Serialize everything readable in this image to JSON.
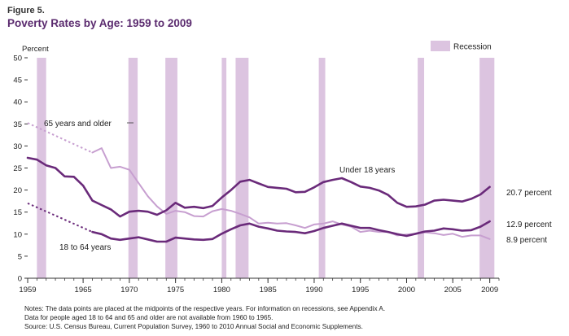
{
  "figure_label": "Figure 5.",
  "title": "Poverty Rates by Age: 1959 to 2009",
  "notes": [
    "Notes: The data points are placed at the midpoints of the respective years. For information on recessions, see Appendix A.",
    "Data for people aged 18 to 64 and 65 and older are not available from 1960 to 1965.",
    "Source: U.S. Census Bureau, Current Population Survey, 1960 to 2010 Annual Social and Economic Supplements."
  ],
  "colors": {
    "series": "#6a2a7a",
    "series_light": "#c79fd0",
    "recession": "#dcc4e0",
    "axis": "#333333"
  },
  "chart_data": {
    "type": "line",
    "ylabel": "Percent",
    "ylim": [
      0,
      50
    ],
    "xlim": [
      1959,
      2010
    ],
    "yticks": [
      0,
      5,
      10,
      15,
      20,
      25,
      30,
      35,
      40,
      45,
      50
    ],
    "xtick_labels": [
      1959,
      1965,
      1970,
      1975,
      1980,
      1985,
      1990,
      1995,
      2000,
      2005,
      2009
    ],
    "legend": {
      "label": "Recession",
      "placement": "top-right"
    },
    "recessions": [
      [
        1960.0,
        1961.0
      ],
      [
        1969.9,
        1970.9
      ],
      [
        1973.9,
        1975.2
      ],
      [
        1980.0,
        1980.5
      ],
      [
        1981.5,
        1982.9
      ],
      [
        1990.5,
        1991.2
      ],
      [
        2001.2,
        2001.9
      ],
      [
        2007.9,
        2009.5
      ]
    ],
    "series": [
      {
        "name": "Under 18 years",
        "end_label": "20.7 percent",
        "x": [
          1959,
          1960,
          1961,
          1962,
          1963,
          1964,
          1965,
          1966,
          1967,
          1968,
          1969,
          1970,
          1971,
          1972,
          1973,
          1974,
          1975,
          1976,
          1977,
          1978,
          1979,
          1980,
          1981,
          1982,
          1983,
          1984,
          1985,
          1986,
          1987,
          1988,
          1989,
          1990,
          1991,
          1992,
          1993,
          1994,
          1995,
          1996,
          1997,
          1998,
          1999,
          2000,
          2001,
          2002,
          2003,
          2004,
          2005,
          2006,
          2007,
          2008,
          2009
        ],
        "y": [
          27.3,
          26.9,
          25.6,
          25.0,
          23.1,
          23.0,
          21.0,
          17.6,
          16.6,
          15.6,
          14.0,
          15.1,
          15.3,
          15.1,
          14.4,
          15.4,
          17.1,
          16.0,
          16.2,
          15.9,
          16.4,
          18.3,
          20.0,
          21.9,
          22.3,
          21.5,
          20.7,
          20.5,
          20.3,
          19.5,
          19.6,
          20.6,
          21.8,
          22.3,
          22.7,
          21.8,
          20.8,
          20.5,
          19.9,
          18.9,
          17.1,
          16.2,
          16.3,
          16.7,
          17.6,
          17.8,
          17.6,
          17.4,
          18.0,
          19.0,
          20.7
        ]
      },
      {
        "name": "18 to 64 years",
        "end_label": "12.9 percent",
        "x": [
          1959,
          1966,
          1967,
          1968,
          1969,
          1970,
          1971,
          1972,
          1973,
          1974,
          1975,
          1976,
          1977,
          1978,
          1979,
          1980,
          1981,
          1982,
          1983,
          1984,
          1985,
          1986,
          1987,
          1988,
          1989,
          1990,
          1991,
          1992,
          1993,
          1994,
          1995,
          1996,
          1997,
          1998,
          1999,
          2000,
          2001,
          2002,
          2003,
          2004,
          2005,
          2006,
          2007,
          2008,
          2009
        ],
        "y": [
          17.0,
          10.5,
          10.0,
          9.0,
          8.7,
          9.0,
          9.3,
          8.8,
          8.3,
          8.3,
          9.2,
          9.0,
          8.8,
          8.7,
          8.9,
          10.1,
          11.1,
          12.0,
          12.4,
          11.7,
          11.3,
          10.8,
          10.6,
          10.5,
          10.2,
          10.7,
          11.4,
          11.9,
          12.4,
          11.9,
          11.4,
          11.4,
          10.9,
          10.5,
          10.0,
          9.6,
          10.1,
          10.6,
          10.8,
          11.3,
          11.1,
          10.8,
          10.9,
          11.7,
          12.9
        ],
        "dashed_until": 1966
      },
      {
        "name": "65 years and older",
        "end_label": "8.9 percent",
        "x": [
          1959,
          1966,
          1967,
          1968,
          1969,
          1970,
          1971,
          1972,
          1973,
          1974,
          1975,
          1976,
          1977,
          1978,
          1979,
          1980,
          1981,
          1982,
          1983,
          1984,
          1985,
          1986,
          1987,
          1988,
          1989,
          1990,
          1991,
          1992,
          1993,
          1994,
          1995,
          1996,
          1997,
          1998,
          1999,
          2000,
          2001,
          2002,
          2003,
          2004,
          2005,
          2006,
          2007,
          2008,
          2009
        ],
        "y": [
          35.2,
          28.5,
          29.5,
          25.0,
          25.3,
          24.6,
          21.6,
          18.6,
          16.3,
          14.6,
          15.3,
          15.0,
          14.1,
          14.0,
          15.2,
          15.7,
          15.3,
          14.6,
          13.8,
          12.4,
          12.6,
          12.4,
          12.5,
          12.0,
          11.4,
          12.2,
          12.4,
          12.9,
          12.2,
          11.7,
          10.5,
          10.8,
          10.5,
          10.5,
          9.7,
          9.9,
          10.1,
          10.4,
          10.2,
          9.8,
          10.1,
          9.4,
          9.7,
          9.7,
          8.9
        ],
        "dashed_until": 1966
      }
    ]
  }
}
